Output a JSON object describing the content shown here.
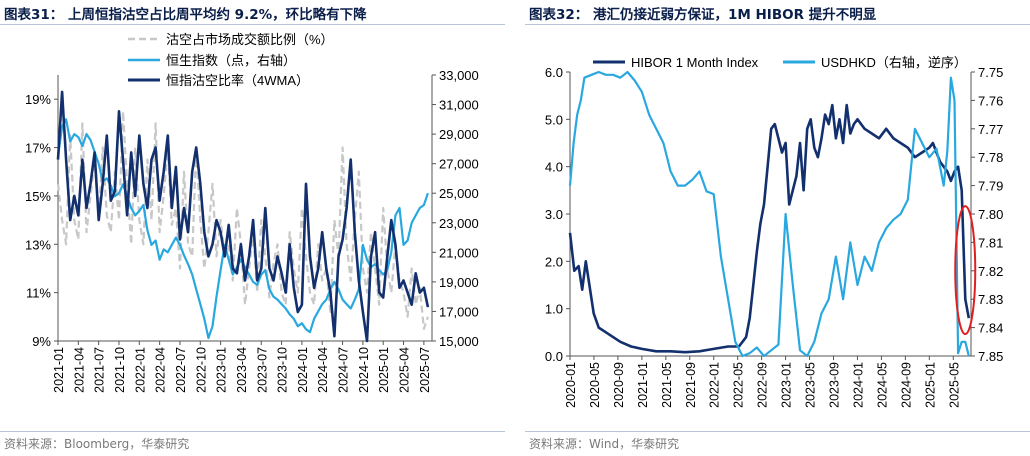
{
  "left": {
    "title": "图表31：  上周恒指沽空占比周平均约 9.2%，环比略有下降",
    "source": "资料来源：Bloomberg，华泰研究",
    "legend": [
      "沽空占市场成交额比例（%）",
      "恒生指数（点，右轴）",
      "恒指沽空比率（4WMA）"
    ],
    "colors": {
      "short_ratio": "#c8c8c8",
      "hsi": "#29a8e0",
      "wma": "#13306e"
    }
  },
  "right": {
    "title": "图表32：  港汇仍接近弱方保证，1M HIBOR 提升不明显",
    "source": "资料来源：Wind，华泰研究",
    "legend": [
      "HIBOR 1 Month Index",
      "USDHKD（右轴，逆序）"
    ],
    "colors": {
      "hibor": "#13306e",
      "usdhkd": "#29a8e0",
      "highlight": "#e02020"
    }
  },
  "chart_data": [
    {
      "type": "line",
      "title": "上周恒指沽空占比周平均约 9.2%，环比略有下降",
      "x_ticks": [
        "2021-01",
        "2021-04",
        "2021-07",
        "2021-10",
        "2022-01",
        "2022-04",
        "2022-07",
        "2022-10",
        "2023-01",
        "2023-04",
        "2023-07",
        "2023-10",
        "2024-01",
        "2024-04",
        "2024-07",
        "2024-10",
        "2025-01",
        "2025-04",
        "2025-07"
      ],
      "y_left_ticks": [
        "9%",
        "11%",
        "13%",
        "15%",
        "17%",
        "19%"
      ],
      "y_left_range": [
        9,
        20
      ],
      "y_right_ticks": [
        "15,000",
        "17,000",
        "19,000",
        "21,000",
        "23,000",
        "25,000",
        "27,000",
        "29,000",
        "31,000",
        "33,000"
      ],
      "y_right_range": [
        15000,
        33000
      ],
      "grid": false,
      "legend_position": "top",
      "series": [
        {
          "name": "沽空占市场成交额比例（%）",
          "axis": "left",
          "style": "dashed",
          "x": [
            2021.0,
            2021.05,
            2021.1,
            2021.15,
            2021.2,
            2021.25,
            2021.3,
            2021.35,
            2021.4,
            2021.45,
            2021.5,
            2021.55,
            2021.6,
            2021.65,
            2021.7,
            2021.75,
            2021.8,
            2021.85,
            2021.9,
            2021.95,
            2022.0,
            2022.05,
            2022.1,
            2022.15,
            2022.2,
            2022.25,
            2022.3,
            2022.35,
            2022.4,
            2022.45,
            2022.5,
            2022.55,
            2022.6,
            2022.65,
            2022.7,
            2022.75,
            2022.8,
            2022.85,
            2022.9,
            2022.95,
            2023.0,
            2023.05,
            2023.1,
            2023.15,
            2023.2,
            2023.25,
            2023.3,
            2023.35,
            2023.4,
            2023.45,
            2023.5,
            2023.55,
            2023.6,
            2023.65,
            2023.7,
            2023.75,
            2023.8,
            2023.85,
            2023.9,
            2023.95,
            2024.0,
            2024.05,
            2024.1,
            2024.15,
            2024.2,
            2024.25,
            2024.3,
            2024.35,
            2024.4,
            2024.45,
            2024.5,
            2024.55,
            2024.6,
            2024.65,
            2024.7,
            2024.75,
            2024.8,
            2024.85,
            2024.9,
            2024.95,
            2025.0,
            2025.05,
            2025.1,
            2025.15,
            2025.2,
            2025.25,
            2025.3,
            2025.35,
            2025.4,
            2025.45,
            2025.5,
            2025.55
          ],
          "values": [
            15.5,
            14.0,
            13.0,
            17.5,
            14.0,
            13.2,
            18.0,
            13.5,
            15.0,
            16.5,
            14.0,
            17.0,
            14.2,
            13.5,
            16.0,
            14.0,
            18.5,
            15.5,
            13.0,
            17.0,
            14.0,
            13.0,
            16.5,
            14.0,
            18.0,
            13.5,
            15.0,
            17.0,
            13.8,
            14.5,
            12.0,
            16.0,
            13.0,
            12.5,
            17.0,
            14.0,
            12.0,
            13.5,
            15.5,
            12.5,
            14.0,
            12.5,
            13.0,
            11.5,
            14.5,
            13.0,
            10.5,
            12.0,
            13.5,
            11.0,
            14.0,
            12.5,
            10.8,
            12.2,
            13.0,
            11.0,
            10.5,
            13.5,
            12.0,
            11.0,
            14.5,
            12.5,
            11.0,
            10.5,
            13.0,
            11.5,
            12.0,
            10.2,
            14.0,
            12.5,
            17.0,
            13.0,
            11.5,
            14.0,
            16.0,
            12.0,
            11.0,
            13.5,
            12.0,
            10.5,
            14.5,
            12.0,
            11.0,
            13.0,
            11.5,
            11.0,
            10.0,
            12.0,
            10.5,
            11.2,
            9.5,
            10.0
          ]
        },
        {
          "name": "恒生指数（点，右轴）",
          "axis": "right",
          "x": [
            2021.0,
            2021.05,
            2021.1,
            2021.15,
            2021.2,
            2021.25,
            2021.3,
            2021.35,
            2021.4,
            2021.45,
            2021.5,
            2021.55,
            2021.6,
            2021.65,
            2021.7,
            2021.75,
            2021.8,
            2021.85,
            2021.9,
            2021.95,
            2022.0,
            2022.05,
            2022.1,
            2022.15,
            2022.2,
            2022.25,
            2022.3,
            2022.35,
            2022.4,
            2022.45,
            2022.5,
            2022.55,
            2022.6,
            2022.65,
            2022.7,
            2022.75,
            2022.8,
            2022.85,
            2022.9,
            2022.95,
            2023.0,
            2023.05,
            2023.1,
            2023.15,
            2023.2,
            2023.25,
            2023.3,
            2023.35,
            2023.4,
            2023.45,
            2023.5,
            2023.55,
            2023.6,
            2023.65,
            2023.7,
            2023.75,
            2023.8,
            2023.85,
            2023.9,
            2023.95,
            2024.0,
            2024.05,
            2024.1,
            2024.15,
            2024.2,
            2024.25,
            2024.3,
            2024.35,
            2024.4,
            2024.45,
            2024.5,
            2024.55,
            2024.6,
            2024.65,
            2024.7,
            2024.75,
            2024.8,
            2024.85,
            2024.9,
            2024.95,
            2025.0,
            2025.05,
            2025.1,
            2025.15,
            2025.2,
            2025.25,
            2025.3,
            2025.35,
            2025.4,
            2025.45,
            2025.5,
            2025.55
          ],
          "values": [
            27500,
            29500,
            30000,
            28500,
            29000,
            28800,
            28200,
            29000,
            28600,
            27800,
            27000,
            25800,
            26000,
            25500,
            24800,
            25000,
            25600,
            24800,
            24000,
            23500,
            23800,
            24200,
            22500,
            21500,
            21800,
            20500,
            21200,
            21000,
            21500,
            22000,
            21500,
            20800,
            20200,
            19500,
            18500,
            17500,
            16500,
            15200,
            16000,
            18000,
            19800,
            21500,
            20500,
            19500,
            20000,
            20500,
            20000,
            19500,
            19000,
            18800,
            19500,
            19800,
            18500,
            18000,
            17800,
            17500,
            17200,
            16800,
            16500,
            16000,
            16200,
            15800,
            15600,
            16500,
            17000,
            17500,
            17800,
            18500,
            19000,
            18500,
            17800,
            17500,
            17200,
            17800,
            18500,
            21500,
            20500,
            20000,
            20200,
            19800,
            19500,
            19800,
            21000,
            23500,
            24000,
            21500,
            21800,
            23000,
            23500,
            24000,
            24200,
            25000
          ]
        },
        {
          "name": "恒指沽空比率（4WMA）",
          "axis": "left",
          "x": [
            2021.0,
            2021.05,
            2021.1,
            2021.15,
            2021.2,
            2021.25,
            2021.3,
            2021.35,
            2021.4,
            2021.45,
            2021.5,
            2021.55,
            2021.6,
            2021.65,
            2021.7,
            2021.75,
            2021.8,
            2021.85,
            2021.9,
            2021.95,
            2022.0,
            2022.05,
            2022.1,
            2022.15,
            2022.2,
            2022.25,
            2022.3,
            2022.35,
            2022.4,
            2022.45,
            2022.5,
            2022.55,
            2022.6,
            2022.65,
            2022.7,
            2022.75,
            2022.8,
            2022.85,
            2022.9,
            2022.95,
            2023.0,
            2023.05,
            2023.1,
            2023.15,
            2023.2,
            2023.25,
            2023.3,
            2023.35,
            2023.4,
            2023.45,
            2023.5,
            2023.55,
            2023.6,
            2023.65,
            2023.7,
            2023.75,
            2023.8,
            2023.85,
            2023.9,
            2023.95,
            2024.0,
            2024.05,
            2024.1,
            2024.15,
            2024.2,
            2024.25,
            2024.3,
            2024.35,
            2024.4,
            2024.45,
            2024.5,
            2024.55,
            2024.6,
            2024.65,
            2024.7,
            2024.75,
            2024.8,
            2024.85,
            2024.9,
            2024.95,
            2025.0,
            2025.05,
            2025.1,
            2025.15,
            2025.2,
            2025.25,
            2025.3,
            2025.35,
            2025.4,
            2025.45,
            2025.5,
            2025.55
          ],
          "values": [
            16.5,
            19.3,
            16.5,
            14.0,
            15.0,
            14.2,
            16.5,
            14.5,
            15.5,
            16.8,
            14.0,
            15.5,
            17.5,
            14.8,
            15.2,
            18.5,
            16.5,
            14.2,
            16.8,
            15.0,
            17.5,
            15.5,
            14.5,
            16.5,
            17.0,
            14.8,
            16.0,
            17.5,
            14.5,
            16.2,
            13.2,
            14.5,
            13.5,
            16.0,
            17.0,
            15.5,
            13.5,
            12.5,
            13.0,
            14.0,
            13.5,
            12.5,
            13.8,
            12.0,
            11.8,
            13.0,
            11.5,
            12.5,
            14.0,
            11.5,
            12.0,
            14.5,
            12.0,
            11.5,
            12.5,
            11.8,
            11.0,
            13.0,
            11.2,
            10.2,
            10.5,
            15.5,
            12.5,
            11.2,
            12.0,
            13.5,
            12.0,
            11.0,
            9.2,
            12.5,
            13.2,
            14.5,
            16.5,
            13.5,
            11.5,
            10.2,
            9.0,
            12.5,
            13.5,
            11.0,
            10.8,
            12.5,
            14.0,
            13.0,
            11.2,
            11.5,
            11.0,
            10.5,
            11.8,
            11.0,
            11.2,
            10.4
          ]
        }
      ]
    },
    {
      "type": "line",
      "title": "港汇仍接近弱方保证，1M HIBOR 提升不明显",
      "x_ticks": [
        "2020-01",
        "2020-05",
        "2020-09",
        "2021-01",
        "2021-05",
        "2021-09",
        "2022-01",
        "2022-05",
        "2022-09",
        "2023-01",
        "2023-05",
        "2023-09",
        "2024-01",
        "2024-05",
        "2024-09",
        "2025-01",
        "2025-05"
      ],
      "y_left_ticks": [
        "0.0",
        "1.0",
        "2.0",
        "3.0",
        "4.0",
        "5.0",
        "6.0"
      ],
      "y_left_range": [
        0,
        6
      ],
      "y_right_ticks": [
        "7.75",
        "7.76",
        "7.77",
        "7.78",
        "7.79",
        "7.80",
        "7.81",
        "7.82",
        "7.83",
        "7.84",
        "7.85"
      ],
      "y_right_range": [
        7.75,
        7.85
      ],
      "y_right_reversed": true,
      "grid": false,
      "legend_position": "top",
      "series": [
        {
          "name": "HIBOR 1 Month Index",
          "axis": "left",
          "x": [
            2020.0,
            2020.06,
            2020.12,
            2020.17,
            2020.22,
            2020.27,
            2020.33,
            2020.4,
            2020.5,
            2020.6,
            2020.7,
            2020.85,
            2021.0,
            2021.2,
            2021.4,
            2021.6,
            2021.8,
            2022.0,
            2022.2,
            2022.35,
            2022.4,
            2022.45,
            2022.5,
            2022.55,
            2022.6,
            2022.65,
            2022.7,
            2022.75,
            2022.8,
            2022.85,
            2022.9,
            2022.95,
            2023.0,
            2023.05,
            2023.1,
            2023.15,
            2023.2,
            2023.25,
            2023.3,
            2023.35,
            2023.4,
            2023.45,
            2023.5,
            2023.55,
            2023.6,
            2023.65,
            2023.7,
            2023.75,
            2023.8,
            2023.85,
            2023.9,
            2023.95,
            2024.0,
            2024.1,
            2024.2,
            2024.3,
            2024.4,
            2024.5,
            2024.6,
            2024.7,
            2024.8,
            2024.9,
            2025.0,
            2025.05,
            2025.1,
            2025.15,
            2025.2,
            2025.25,
            2025.3,
            2025.35,
            2025.4,
            2025.45,
            2025.5,
            2025.55
          ],
          "values": [
            2.6,
            1.8,
            1.9,
            1.4,
            2.0,
            1.5,
            0.9,
            0.6,
            0.5,
            0.4,
            0.3,
            0.2,
            0.15,
            0.1,
            0.1,
            0.08,
            0.1,
            0.15,
            0.2,
            0.2,
            0.3,
            0.4,
            0.8,
            1.5,
            2.2,
            2.8,
            3.2,
            4.0,
            4.8,
            4.9,
            4.6,
            4.3,
            4.5,
            3.2,
            3.5,
            3.8,
            4.5,
            3.5,
            4.8,
            5.0,
            4.4,
            4.2,
            4.6,
            5.1,
            4.9,
            5.3,
            4.6,
            5.0,
            4.5,
            5.3,
            4.7,
            4.9,
            5.0,
            4.8,
            4.7,
            4.6,
            4.8,
            4.6,
            4.5,
            4.4,
            4.2,
            4.3,
            4.4,
            4.5,
            4.3,
            4.1,
            4.0,
            3.9,
            3.7,
            3.9,
            4.0,
            3.5,
            1.2,
            0.8
          ]
        },
        {
          "name": "USDHKD（右轴，逆序）",
          "axis": "right",
          "x": [
            2020.0,
            2020.05,
            2020.1,
            2020.15,
            2020.2,
            2020.3,
            2020.4,
            2020.5,
            2020.6,
            2020.7,
            2020.8,
            2020.9,
            2021.0,
            2021.1,
            2021.2,
            2021.3,
            2021.4,
            2021.5,
            2021.6,
            2021.7,
            2021.8,
            2021.9,
            2022.0,
            2022.1,
            2022.2,
            2022.3,
            2022.4,
            2022.5,
            2022.6,
            2022.7,
            2022.8,
            2022.9,
            2023.0,
            2023.1,
            2023.2,
            2023.3,
            2023.4,
            2023.5,
            2023.6,
            2023.7,
            2023.8,
            2023.9,
            2024.0,
            2024.1,
            2024.2,
            2024.3,
            2024.4,
            2024.5,
            2024.6,
            2024.7,
            2024.8,
            2024.9,
            2025.0,
            2025.1,
            2025.2,
            2025.25,
            2025.3,
            2025.35,
            2025.4,
            2025.45,
            2025.5,
            2025.55
          ],
          "values": [
            7.79,
            7.775,
            7.765,
            7.76,
            7.752,
            7.751,
            7.75,
            7.751,
            7.751,
            7.752,
            7.75,
            7.753,
            7.757,
            7.765,
            7.77,
            7.775,
            7.785,
            7.79,
            7.79,
            7.788,
            7.785,
            7.792,
            7.793,
            7.815,
            7.83,
            7.845,
            7.85,
            7.849,
            7.847,
            7.85,
            7.848,
            7.846,
            7.8,
            7.825,
            7.848,
            7.85,
            7.845,
            7.835,
            7.83,
            7.815,
            7.83,
            7.81,
            7.825,
            7.815,
            7.82,
            7.81,
            7.805,
            7.802,
            7.8,
            7.795,
            7.77,
            7.775,
            7.78,
            7.777,
            7.79,
            7.778,
            7.752,
            7.76,
            7.849,
            7.845,
            7.845,
            7.85
          ]
        }
      ]
    }
  ]
}
